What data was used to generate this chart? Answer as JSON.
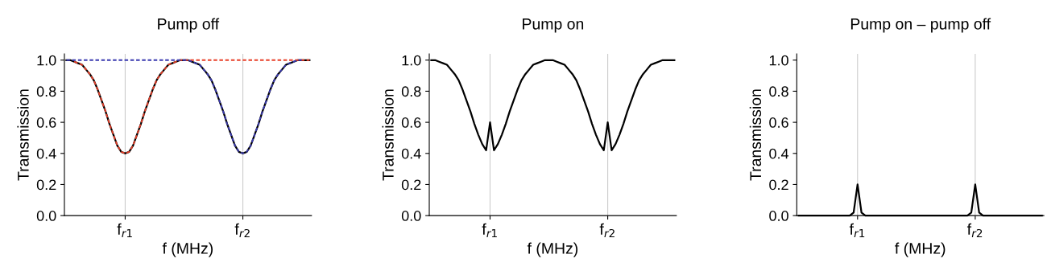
{
  "chart_data": [
    {
      "type": "line",
      "title": "Pump off",
      "xlabel": "f (MHz)",
      "ylabel": "Transmission",
      "ylim": [
        0,
        1.04
      ],
      "yticks": [
        {
          "value": 0,
          "label": "0.0"
        },
        {
          "value": 0.2,
          "label": "0.2"
        },
        {
          "value": 0.4,
          "label": "0.4"
        },
        {
          "value": 0.6,
          "label": "0.6"
        },
        {
          "value": 0.8,
          "label": "0.8"
        },
        {
          "value": 1,
          "label": "1.0"
        }
      ],
      "grid": "x",
      "legend": false,
      "categories": [
        null,
        null,
        null,
        null,
        null,
        null,
        null,
        null,
        null,
        null,
        null,
        null,
        null,
        null,
        null,
        "f$_{r1}$",
        null,
        null,
        null,
        null,
        null,
        null,
        null,
        null,
        null,
        null,
        null,
        null,
        null,
        null,
        null,
        null,
        null,
        null,
        null,
        null,
        null,
        null,
        null,
        null,
        null,
        null,
        null,
        null,
        null,
        "f$_{r2}$",
        null,
        null,
        null,
        null,
        null,
        null,
        null,
        null,
        null,
        null,
        null,
        null,
        null,
        null,
        null,
        null,
        null
      ],
      "series": [
        {
          "color": "#000000",
          "line_style": "solid",
          "values": [
            1.0,
            1.0,
            0.99,
            0.98,
            0.97,
            0.94,
            0.91,
            0.87,
            0.81,
            0.74,
            0.67,
            0.59,
            0.52,
            0.45,
            0.41,
            0.4,
            0.41,
            0.45,
            0.52,
            0.59,
            0.67,
            0.74,
            0.81,
            0.87,
            0.91,
            0.94,
            0.97,
            0.98,
            0.99,
            1.0,
            1.0,
            1.0,
            0.99,
            0.98,
            0.97,
            0.94,
            0.91,
            0.87,
            0.81,
            0.74,
            0.67,
            0.59,
            0.52,
            0.45,
            0.41,
            0.4,
            0.41,
            0.45,
            0.52,
            0.59,
            0.67,
            0.74,
            0.81,
            0.87,
            0.91,
            0.94,
            0.97,
            0.98,
            0.99,
            1.0,
            1.0,
            1.0,
            1.0
          ]
        },
        {
          "color": "#e8402a",
          "line_style": "dashed",
          "values": [
            null,
            null,
            0.99,
            0.98,
            0.97,
            0.94,
            0.91,
            0.87,
            0.81,
            0.74,
            0.67,
            0.59,
            0.52,
            0.45,
            0.41,
            0.4,
            0.41,
            0.45,
            0.52,
            0.59,
            0.67,
            0.74,
            0.81,
            0.87,
            0.91,
            0.94,
            0.97,
            0.98,
            0.99,
            1.0,
            1.0,
            1.0,
            1.0,
            1.0,
            1.0,
            1.0,
            1.0,
            1.0,
            1.0,
            1.0,
            1.0,
            1.0,
            1.0,
            1.0,
            1.0,
            1.0,
            1.0,
            1.0,
            1.0,
            1.0,
            1.0,
            1.0,
            1.0,
            1.0,
            1.0,
            1.0,
            1.0,
            1.0,
            1.0,
            1.0,
            1.0,
            1.0,
            1.0
          ]
        },
        {
          "color": "#3a3ab0",
          "line_style": "dashed",
          "values": [
            1.0,
            1.0,
            1.0,
            1.0,
            1.0,
            1.0,
            1.0,
            1.0,
            1.0,
            1.0,
            1.0,
            1.0,
            1.0,
            1.0,
            1.0,
            1.0,
            1.0,
            1.0,
            1.0,
            1.0,
            1.0,
            1.0,
            1.0,
            1.0,
            1.0,
            1.0,
            1.0,
            1.0,
            1.0,
            1.0,
            1.0,
            1.0,
            0.99,
            0.98,
            0.97,
            0.94,
            0.91,
            0.87,
            0.81,
            0.74,
            0.67,
            0.59,
            0.52,
            0.45,
            0.41,
            0.4,
            0.41,
            0.45,
            0.52,
            0.59,
            0.67,
            0.74,
            0.81,
            0.87,
            0.91,
            0.94,
            0.97,
            0.98,
            0.99,
            1.0,
            1.0,
            null,
            null
          ]
        }
      ]
    },
    {
      "type": "line",
      "title": "Pump on",
      "xlabel": "f (MHz)",
      "ylabel": "Transmission",
      "ylim": [
        0,
        1.04
      ],
      "yticks": [
        {
          "value": 0,
          "label": "0.0"
        },
        {
          "value": 0.2,
          "label": "0.2"
        },
        {
          "value": 0.4,
          "label": "0.4"
        },
        {
          "value": 0.6,
          "label": "0.6"
        },
        {
          "value": 0.8,
          "label": "0.8"
        },
        {
          "value": 1,
          "label": "1.0"
        }
      ],
      "grid": "x",
      "legend": false,
      "categories": [
        null,
        null,
        null,
        null,
        null,
        null,
        null,
        null,
        null,
        null,
        null,
        null,
        null,
        null,
        null,
        "f$_{r1}$",
        null,
        null,
        null,
        null,
        null,
        null,
        null,
        null,
        null,
        null,
        null,
        null,
        null,
        null,
        null,
        null,
        null,
        null,
        null,
        null,
        null,
        null,
        null,
        null,
        null,
        null,
        null,
        null,
        null,
        "f$_{r2}$",
        null,
        null,
        null,
        null,
        null,
        null,
        null,
        null,
        null,
        null,
        null,
        null,
        null,
        null,
        null,
        null,
        null
      ],
      "series": [
        {
          "color": "#000000",
          "line_style": "solid",
          "values": [
            1.0,
            1.0,
            0.99,
            0.98,
            0.97,
            0.94,
            0.91,
            0.87,
            0.81,
            0.74,
            0.67,
            0.59,
            0.52,
            0.46,
            0.42,
            0.6,
            0.42,
            0.46,
            0.52,
            0.59,
            0.67,
            0.74,
            0.81,
            0.87,
            0.91,
            0.94,
            0.97,
            0.98,
            0.99,
            1.0,
            1.0,
            1.0,
            0.99,
            0.98,
            0.97,
            0.94,
            0.91,
            0.87,
            0.81,
            0.74,
            0.67,
            0.59,
            0.52,
            0.46,
            0.42,
            0.6,
            0.42,
            0.46,
            0.52,
            0.59,
            0.67,
            0.74,
            0.81,
            0.87,
            0.91,
            0.94,
            0.97,
            0.98,
            0.99,
            1.0,
            1.0,
            1.0,
            1.0
          ]
        }
      ]
    },
    {
      "type": "line",
      "title": "Pump on – pump off",
      "xlabel": "f (MHz)",
      "ylabel": "Transmission",
      "ylim": [
        0,
        1.04
      ],
      "yticks": [
        {
          "value": 0,
          "label": "0.0"
        },
        {
          "value": 0.2,
          "label": "0.2"
        },
        {
          "value": 0.4,
          "label": "0.4"
        },
        {
          "value": 0.6,
          "label": "0.6"
        },
        {
          "value": 0.8,
          "label": "0.8"
        },
        {
          "value": 1,
          "label": "1.0"
        }
      ],
      "grid": "x",
      "legend": false,
      "categories": [
        null,
        null,
        null,
        null,
        null,
        null,
        null,
        null,
        null,
        null,
        null,
        null,
        null,
        null,
        null,
        "f$_{r1}$",
        null,
        null,
        null,
        null,
        null,
        null,
        null,
        null,
        null,
        null,
        null,
        null,
        null,
        null,
        null,
        null,
        null,
        null,
        null,
        null,
        null,
        null,
        null,
        null,
        null,
        null,
        null,
        null,
        null,
        "f$_{r2}$",
        null,
        null,
        null,
        null,
        null,
        null,
        null,
        null,
        null,
        null,
        null,
        null,
        null,
        null,
        null,
        null,
        null
      ],
      "series": [
        {
          "color": "#000000",
          "line_style": "solid",
          "values": [
            0,
            0,
            0,
            0,
            0,
            0,
            0,
            0,
            0,
            0,
            0,
            0,
            0,
            0,
            0.02,
            0.2,
            0.02,
            0,
            0,
            0,
            0,
            0,
            0,
            0,
            0,
            0,
            0,
            0,
            0,
            0,
            0,
            0,
            0,
            0,
            0,
            0,
            0,
            0,
            0,
            0,
            0,
            0,
            0,
            0,
            0.02,
            0.2,
            0.02,
            0,
            0,
            0,
            0,
            0,
            0,
            0,
            0,
            0,
            0,
            0,
            0,
            0,
            0,
            0,
            0
          ]
        }
      ]
    }
  ]
}
